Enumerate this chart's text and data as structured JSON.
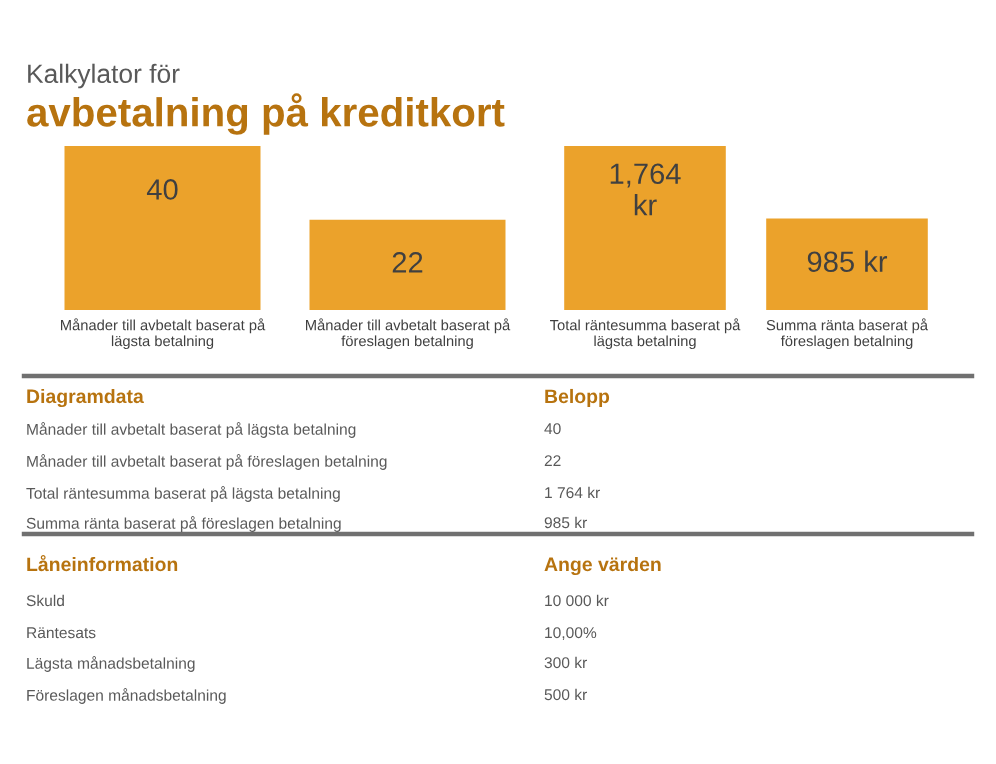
{
  "chart_data": [
    {
      "type": "bar",
      "title": "Kalkylator för",
      "subtitle": "avbetalning på kreditkort",
      "categories": [
        "Månader till avbetalt baserat på\nlägsta betalning",
        "Månader till avbetalt baserat på\nföreslagen betalning"
      ],
      "values": [
        40,
        22
      ],
      "color": "#eba22b",
      "data_labels": true
    },
    {
      "type": "bar",
      "categories": [
        "Total räntesumma baserat på\nlägsta betalning",
        "Summa ränta baserat på\nföreslagen betalning"
      ],
      "values": [
        1764,
        985
      ],
      "color": "#eba22b",
      "value_labels": [
        "1,764 kr",
        "985 kr"
      ]
    },
    {
      "type": "other",
      "annotations": [
        "Diagramdata",
        "Belopp",
        "Månader till avbetalt baserat på lägsta betalning",
        "40",
        "Månader till avbetalt baserat på föreslagen betalning",
        "22",
        "Total räntesumma baserat på lägsta betalning",
        "1 764 kr",
        "Summa ränta baserat på föreslagen betalning",
        "985 kr",
        "Låneinformation",
        "Ange värden",
        "Skuld",
        "10 000 kr",
        "Räntesats",
        "10,00%",
        "Lägsta månadsbetalning",
        "300 kr",
        "Föreslagen månadsbetalning",
        "500 kr"
      ]
    }
  ]
}
